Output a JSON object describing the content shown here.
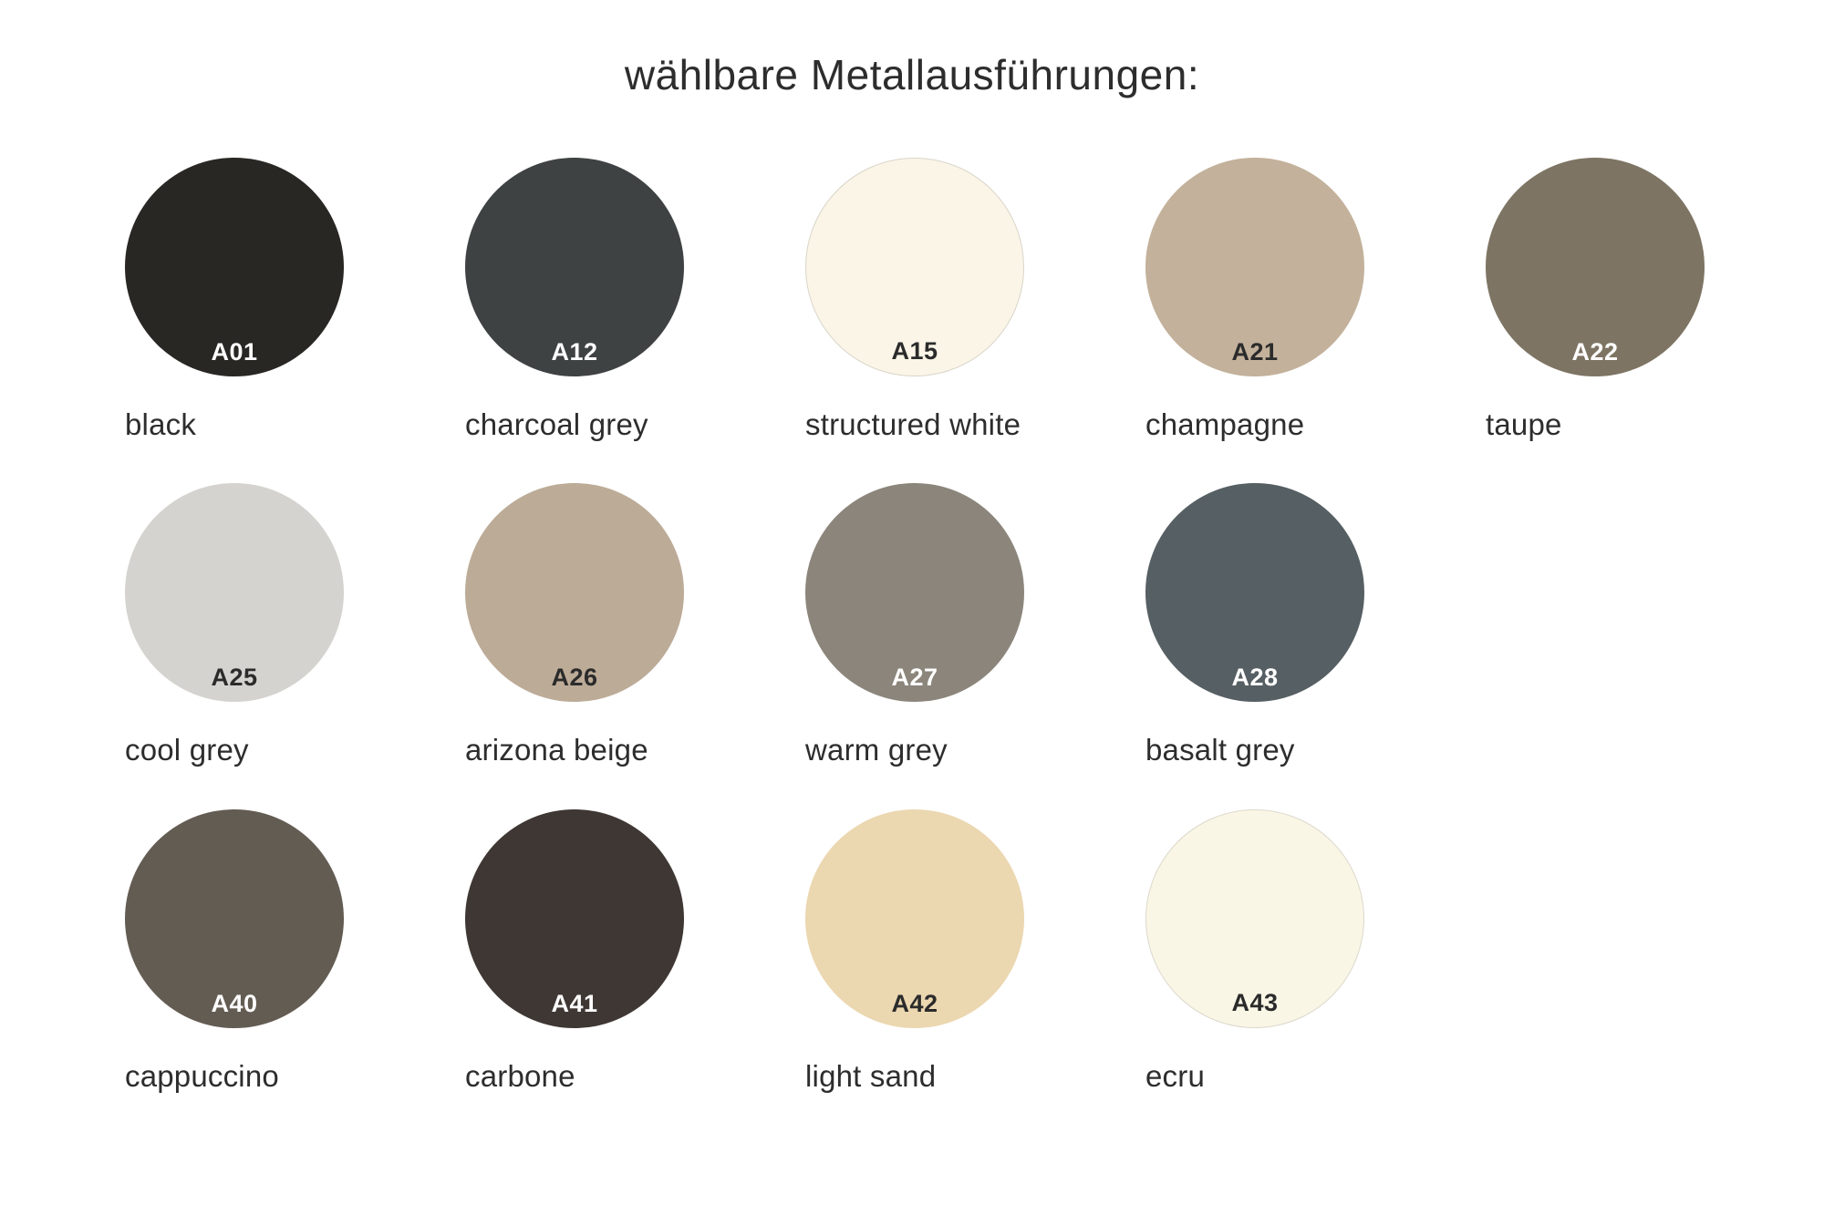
{
  "page": {
    "title": "wählbare Metallausführungen:",
    "background": "#ffffff",
    "text_color": "#2d2d2d"
  },
  "swatch_grid": {
    "rows": [
      [
        {
          "code": "A01",
          "name": "black",
          "color": "#292724",
          "text_color": "#ffffff",
          "border": ""
        },
        {
          "code": "A12",
          "name": "charcoal grey",
          "color": "#3f4243",
          "text_color": "#ffffff",
          "border": ""
        },
        {
          "code": "A15",
          "name": "structured white",
          "color": "#faf5e7",
          "text_color": "#2b2b2b",
          "border": "#d9d5c9"
        },
        {
          "code": "A21",
          "name": "champagne",
          "color": "#c3b19b",
          "text_color": "#2b2b2b",
          "border": ""
        },
        {
          "code": "A22",
          "name": "taupe",
          "color": "#7e7463",
          "text_color": "#ffffff",
          "border": ""
        }
      ],
      [
        {
          "code": "A25",
          "name": "cool grey",
          "color": "#d5d3cf",
          "text_color": "#2b2b2b",
          "border": ""
        },
        {
          "code": "A26",
          "name": "arizona beige",
          "color": "#bcab97",
          "text_color": "#2b2b2b",
          "border": ""
        },
        {
          "code": "A27",
          "name": "warm grey",
          "color": "#8b857b",
          "text_color": "#ffffff",
          "border": ""
        },
        {
          "code": "A28",
          "name": "basalt grey",
          "color": "#565f63",
          "text_color": "#ffffff",
          "border": ""
        }
      ],
      [
        {
          "code": "A40",
          "name": "cappuccino",
          "color": "#635c53",
          "text_color": "#ffffff",
          "border": ""
        },
        {
          "code": "A41",
          "name": "carbone",
          "color": "#3e3733",
          "text_color": "#ffffff",
          "border": ""
        },
        {
          "code": "A42",
          "name": "light sand",
          "color": "#ebd7b0",
          "text_color": "#2b2b2b",
          "border": ""
        },
        {
          "code": "A43",
          "name": "ecru",
          "color": "#faf6e6",
          "text_color": "#2b2b2b",
          "border": "#dcd8cc"
        }
      ]
    ]
  }
}
